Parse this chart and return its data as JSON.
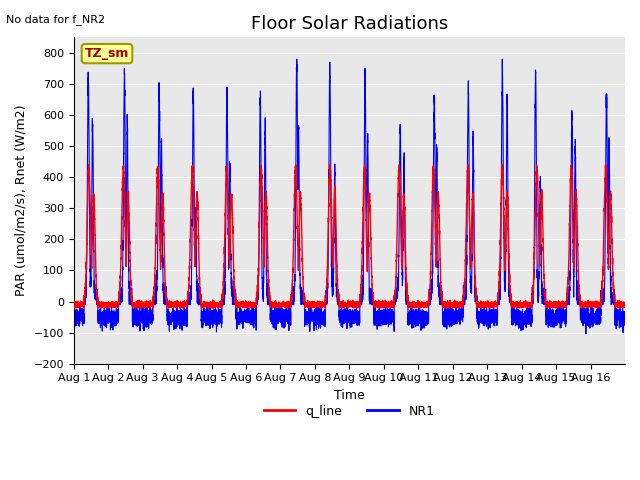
{
  "title": "Floor Solar Radiations",
  "no_data_text": "No data for f_NR2",
  "xlabel": "Time",
  "ylabel": "PAR (umol/m2/s), Rnet (W/m2)",
  "ylim": [
    -200,
    850
  ],
  "yticks": [
    -200,
    -100,
    0,
    100,
    200,
    300,
    400,
    500,
    600,
    700,
    800
  ],
  "xtick_labels": [
    "Aug 1",
    "Aug 2",
    "Aug 3",
    "Aug 4",
    "Aug 5",
    "Aug 6",
    "Aug 7",
    "Aug 8",
    "Aug 9",
    "Aug 10",
    "Aug 11",
    "Aug 12",
    "Aug 13",
    "Aug 14",
    "Aug 15",
    "Aug 16"
  ],
  "color_red": "#FF0000",
  "color_blue": "#0000FF",
  "bg_color": "#E8E8E8",
  "legend_box_color": "#FFFF99",
  "legend_box_edge": "#999900",
  "legend_box_text": "TZ_sm",
  "legend_box_text_color": "#AA0000",
  "title_fontsize": 13,
  "label_fontsize": 9,
  "tick_fontsize": 8,
  "n_points_per_day": 480,
  "n_days": 16,
  "day_peaks_red": [
    430,
    430,
    430,
    430,
    430,
    430,
    430,
    430,
    430,
    430,
    430,
    430,
    430,
    430,
    430,
    430
  ],
  "day_peaks_blue": [
    690,
    700,
    660,
    660,
    640,
    640,
    730,
    720,
    700,
    520,
    630,
    665,
    730,
    720,
    590,
    645
  ],
  "night_blue": -50,
  "night_blue_noise": 15,
  "red_night_val": -10,
  "red_night_noise": 5
}
